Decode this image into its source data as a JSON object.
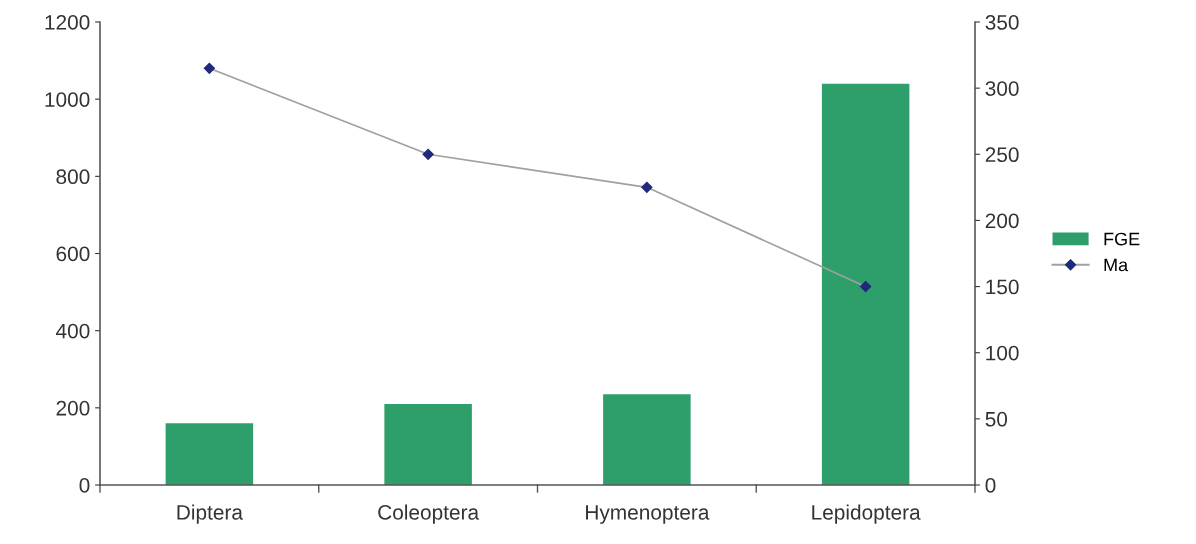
{
  "chart_data": {
    "type": "bar",
    "categories": [
      "Diptera",
      "Coleoptera",
      "Hymenoptera",
      "Lepidoptera"
    ],
    "series": [
      {
        "name": "FGE",
        "color": "#2e9e6b",
        "values": [
          160,
          210,
          235,
          1040
        ]
      },
      {
        "name": "Ma",
        "type": "line",
        "axis": "y2",
        "color": "#1f2a7a",
        "marker": "diamond",
        "values": [
          315,
          250,
          225,
          150
        ]
      }
    ],
    "ylim": [
      0,
      1200
    ],
    "yticks": [
      0,
      200,
      400,
      600,
      800,
      1000,
      1200
    ],
    "y2lim": [
      0,
      350
    ],
    "y2ticks": [
      0,
      50,
      100,
      150,
      200,
      250,
      300,
      350
    ],
    "grid": false,
    "legend": "right"
  }
}
